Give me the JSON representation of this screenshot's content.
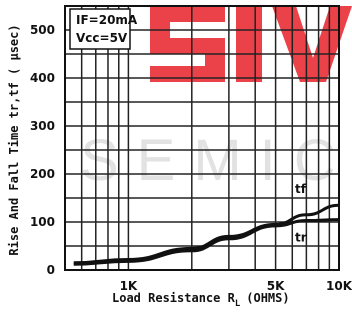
{
  "chart_data": {
    "type": "line",
    "xlabel": "Load Resistance R",
    "xlabel_sub": "L",
    "xlabel_unit": "(OHMS)",
    "ylabel": "Rise And Fall Time tr,tf ( μsec)",
    "xscale": "log",
    "xlim": [
      500,
      10000
    ],
    "ylim": [
      0,
      550
    ],
    "x_ticks": [
      {
        "value": 1000,
        "label": "1K"
      },
      {
        "value": 5000,
        "label": "5K"
      },
      {
        "value": 10000,
        "label": "10K"
      }
    ],
    "y_ticks": [
      0,
      100,
      200,
      300,
      400,
      500
    ],
    "grid": true,
    "annotations": [
      "IF=20mA",
      "Vcc=5V"
    ],
    "series": [
      {
        "name": "tf",
        "x": [
          550,
          1000,
          2000,
          3000,
          5000,
          7000,
          10000
        ],
        "y": [
          15,
          22,
          45,
          70,
          95,
          115,
          135
        ]
      },
      {
        "name": "tr",
        "x": [
          550,
          1000,
          2000,
          3000,
          5000,
          7000,
          10000
        ],
        "y": [
          12,
          18,
          40,
          65,
          92,
          103,
          105
        ]
      }
    ]
  },
  "watermark": {
    "top": "SIV",
    "bottom": "SEMICO"
  },
  "colors": {
    "watermark_red": "#e8202a",
    "line": "#111111",
    "grid": "#222222"
  }
}
